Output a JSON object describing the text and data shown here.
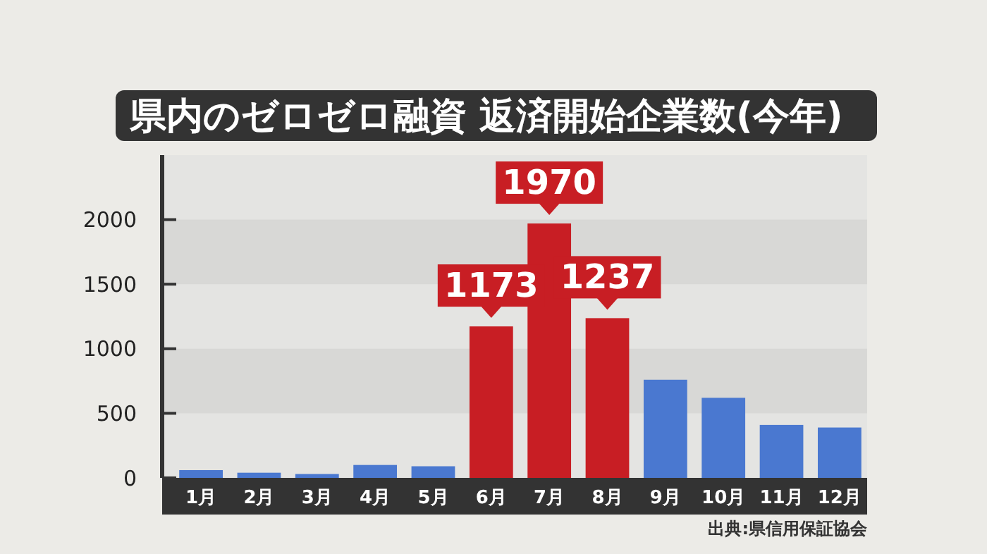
{
  "chart_data": {
    "type": "bar",
    "title": "県内のゼロゼロ融資 返済開始企業数(今年)",
    "categories": [
      "1月",
      "2月",
      "3月",
      "4月",
      "5月",
      "6月",
      "7月",
      "8月",
      "9月",
      "10月",
      "11月",
      "12月"
    ],
    "values": [
      60,
      40,
      30,
      100,
      90,
      1173,
      1970,
      1237,
      760,
      620,
      410,
      390
    ],
    "colors": [
      "#4a78d0",
      "#4a78d0",
      "#4a78d0",
      "#4a78d0",
      "#4a78d0",
      "#c81e24",
      "#c81e24",
      "#c81e24",
      "#4a78d0",
      "#4a78d0",
      "#4a78d0",
      "#4a78d0"
    ],
    "value_labels": [
      null,
      null,
      null,
      null,
      null,
      "1173",
      "1970",
      "1237",
      null,
      null,
      null,
      null
    ],
    "ylim": [
      0,
      2500
    ],
    "yticks": [
      0,
      500,
      1000,
      1500,
      2000
    ],
    "annotations": [
      "出典:県信用保証協会"
    ]
  }
}
